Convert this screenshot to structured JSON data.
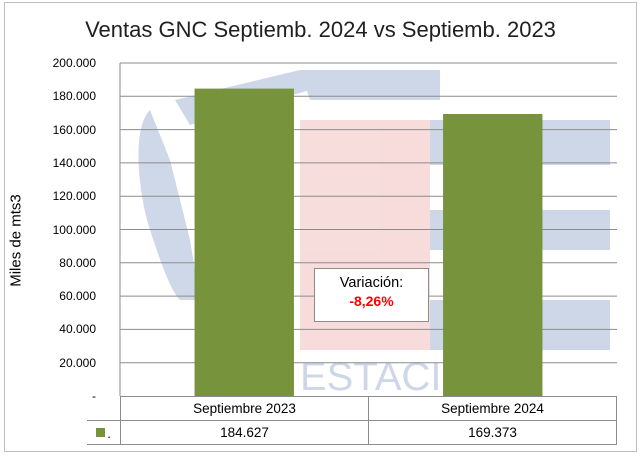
{
  "chart_data": {
    "type": "bar",
    "title": "Ventas GNC Septiemb. 2024 vs Septiemb. 2023",
    "ylabel": "Miles de mts3",
    "xlabel": "",
    "categories": [
      "Septiembre 2023",
      "Septiembre 2024"
    ],
    "series": [
      {
        "name": ".",
        "values": [
          184627,
          169373
        ],
        "value_labels": [
          "184.627",
          "169.373"
        ],
        "color": "#77933c"
      }
    ],
    "ylim": [
      0,
      200000
    ],
    "yticks": [
      0,
      20000,
      40000,
      60000,
      80000,
      100000,
      120000,
      140000,
      160000,
      180000,
      200000
    ],
    "ytick_labels": [
      "-",
      "20.000",
      "40.000",
      "60.000",
      "80.000",
      "100.000",
      "120.000",
      "140.000",
      "160.000",
      "180.000",
      "200.000"
    ],
    "grid": true,
    "legend": "data-table",
    "annotation": {
      "label": "Variación:",
      "value": "-8,26%",
      "value_color": "#ff0000"
    },
    "watermark_text": "ESTACI RO"
  }
}
